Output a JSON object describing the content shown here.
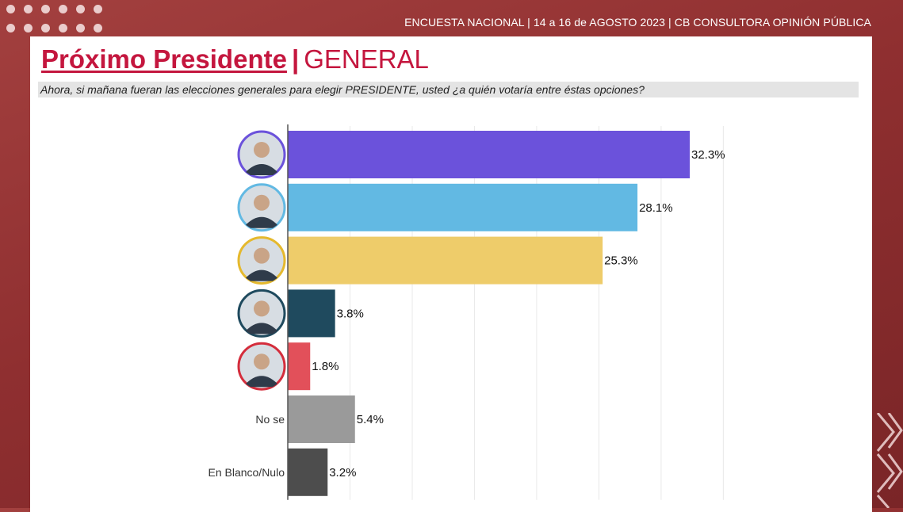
{
  "header": {
    "text": "ENCUESTA NACIONAL | 14 a 16 de AGOSTO 2023 | CB CONSULTORA OPINIÓN PÚBLICA"
  },
  "title": {
    "main": "Próximo Presidente",
    "separator": "|",
    "sub": "GENERAL"
  },
  "question": "Ahora, si mañana fueran las elecciones generales para elegir PRESIDENTE, usted ¿a quién votaría entre éstas opciones?",
  "colors": {
    "accent": "#c4163e",
    "background": "#8f2f30"
  },
  "chart_data": {
    "type": "bar",
    "orientation": "horizontal",
    "categories": [
      "",
      "",
      "",
      "",
      "",
      "No se",
      "En Blanco/Nulo"
    ],
    "values": [
      32.3,
      28.1,
      25.3,
      3.8,
      1.8,
      5.4,
      3.2
    ],
    "value_labels": [
      "32.3%",
      "28.1%",
      "25.3%",
      "3.8%",
      "1.8%",
      "5.4%",
      "3.2%"
    ],
    "colors": [
      "#6b52db",
      "#62b9e3",
      "#eecc6a",
      "#1f4a5e",
      "#e2505a",
      "#9a9a9a",
      "#4d4d4d"
    ],
    "category_icons": [
      "candidate-photo",
      "candidate-photo",
      "candidate-photo",
      "candidate-photo",
      "candidate-photo",
      null,
      null
    ],
    "icon_ring_colors": [
      "#6b52db",
      "#62b9e3",
      "#e5b92e",
      "#1f4a5e",
      "#d42d3c",
      null,
      null
    ],
    "xlim": [
      0,
      35
    ],
    "grid": true,
    "legend": "none"
  }
}
